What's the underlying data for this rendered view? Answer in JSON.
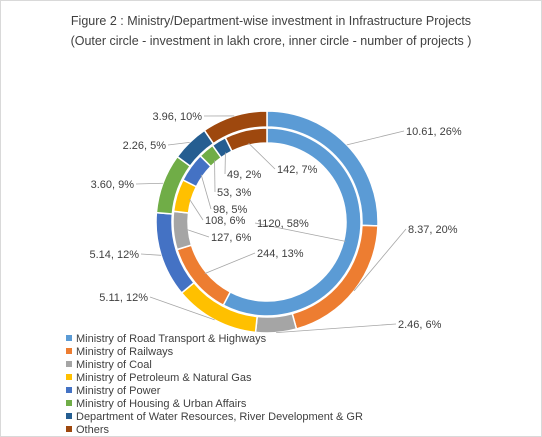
{
  "chart_data": {
    "type": "pie",
    "variant": "double-doughnut",
    "title": "Figure 2 : Ministry/Department-wise investment in Infrastructure Projects",
    "subtitle": "(Outer circle - investment in lakh crore, inner circle - number of projects )",
    "categories": [
      "Ministry of Road Transport & Highways",
      "Ministry of Railways",
      "Ministry of Coal",
      "Ministry of Petroleum & Natural Gas",
      "Ministry of Power",
      "Ministry of Housing & Urban Affairs",
      "Department of Water Resources, River Development & GR",
      "Others"
    ],
    "colors": [
      "#5b9bd5",
      "#ed7d31",
      "#a5a5a5",
      "#ffc000",
      "#4472c4",
      "#70ad47",
      "#255e91",
      "#9e480e"
    ],
    "series": [
      {
        "ring": "outer",
        "values": [
          10.61,
          8.37,
          2.46,
          5.11,
          5.14,
          3.6,
          2.26,
          3.96
        ],
        "labels": [
          "10.61, 26%",
          "8.37, 20%",
          "2.46, 6%",
          "5.11, 12%",
          "5.14, 12%",
          "3.60, 9%",
          "2.26, 5%",
          "3.96, 10%"
        ]
      },
      {
        "ring": "inner",
        "values": [
          1120,
          244,
          127,
          108,
          98,
          53,
          49,
          142
        ],
        "labels": [
          "1120, 58%",
          "244, 13%",
          "127, 6%",
          "108, 6%",
          "98, 5%",
          "53, 3%",
          "49, 2%",
          "142, 7%"
        ]
      }
    ],
    "legend_position": "bottom-left"
  }
}
